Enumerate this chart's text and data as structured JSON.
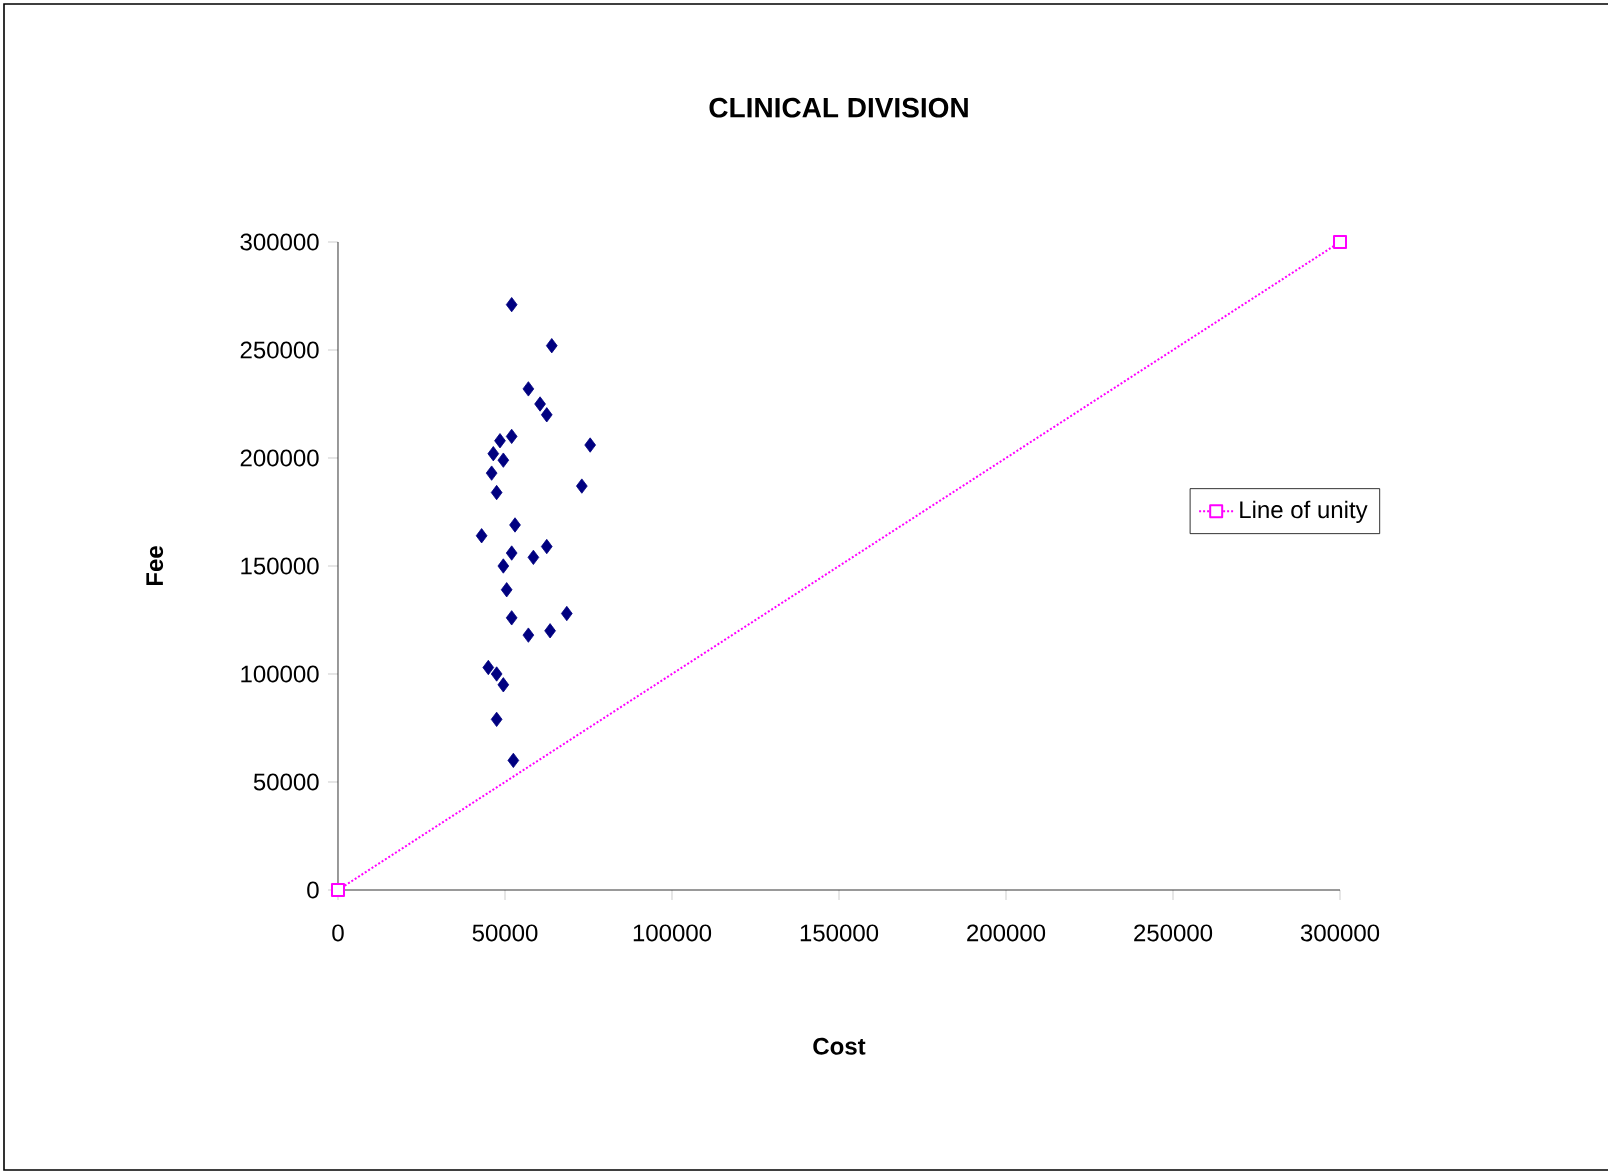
{
  "chart_data": {
    "type": "scatter",
    "title": "CLINICAL DIVISION",
    "xlabel": "Cost",
    "ylabel": "Fee",
    "xlim": [
      0,
      300000
    ],
    "ylim": [
      0,
      300000
    ],
    "xticks": [
      0,
      50000,
      100000,
      150000,
      200000,
      250000,
      300000
    ],
    "yticks": [
      0,
      50000,
      100000,
      150000,
      200000,
      250000,
      300000
    ],
    "legend": "right",
    "series": [
      {
        "color": "#000080",
        "marker": "diamond",
        "x": [
          52000,
          64000,
          57000,
          60500,
          62500,
          75500,
          52000,
          48500,
          46500,
          49500,
          46000,
          47500,
          73000,
          43000,
          53000,
          62500,
          58500,
          52000,
          49500,
          50500,
          52000,
          68500,
          57000,
          63500,
          45000,
          47500,
          49500,
          47500,
          52500
        ],
        "values": [
          271000,
          252000,
          232000,
          225000,
          220000,
          206000,
          210000,
          208000,
          202000,
          199000,
          193000,
          184000,
          187000,
          164000,
          169000,
          159000,
          154000,
          156000,
          150000,
          139000,
          126000,
          128000,
          118000,
          120000,
          103000,
          100000,
          95000,
          79000,
          60000
        ]
      },
      {
        "name": "Line of unity",
        "type": "line",
        "color": "#ff00ff",
        "marker": "square",
        "line_style": "dotted",
        "x": [
          0,
          300000
        ],
        "values": [
          0,
          300000
        ]
      }
    ]
  }
}
